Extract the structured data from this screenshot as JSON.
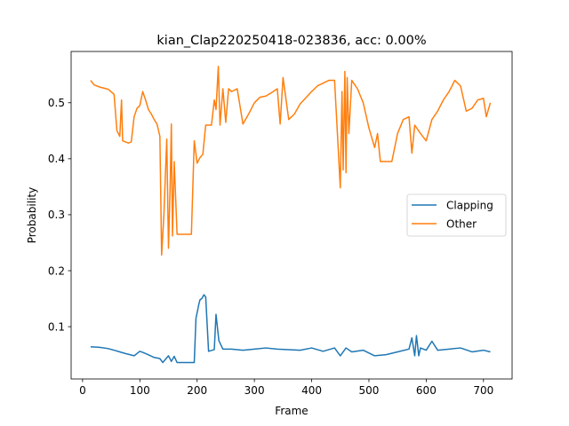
{
  "chart_data": {
    "type": "line",
    "title": "kian_Clap220250418-023836,  acc: 0.00%",
    "xlabel": "Frame",
    "ylabel": "Probability",
    "xlim": [
      -20,
      750
    ],
    "ylim": [
      0.0066,
      0.5916
    ],
    "xticks": [
      0,
      100,
      200,
      300,
      400,
      500,
      600,
      700
    ],
    "yticks": [
      0.1,
      0.2,
      0.3,
      0.4,
      0.5
    ],
    "ytick_labels": [
      "0.1",
      "0.2",
      "0.3",
      "0.4",
      "0.5"
    ],
    "legend_position": "center-right",
    "grid": false,
    "series": [
      {
        "name": "Clapping",
        "color": "#1f77b4",
        "x": [
          14,
          30,
          44,
          55,
          65,
          75,
          90,
          100,
          110,
          125,
          135,
          140,
          150,
          155,
          160,
          165,
          180,
          195,
          198,
          203,
          205,
          208,
          212,
          215,
          220,
          230,
          233,
          238,
          245,
          260,
          280,
          300,
          320,
          340,
          360,
          380,
          400,
          420,
          440,
          450,
          460,
          470,
          490,
          510,
          530,
          550,
          570,
          575,
          580,
          583,
          587,
          590,
          600,
          610,
          620,
          640,
          660,
          680,
          700,
          712
        ],
        "y": [
          0.064,
          0.063,
          0.061,
          0.058,
          0.055,
          0.052,
          0.048,
          0.056,
          0.052,
          0.045,
          0.043,
          0.036,
          0.048,
          0.038,
          0.047,
          0.036,
          0.036,
          0.036,
          0.115,
          0.14,
          0.148,
          0.15,
          0.157,
          0.153,
          0.056,
          0.059,
          0.122,
          0.075,
          0.06,
          0.06,
          0.058,
          0.06,
          0.062,
          0.06,
          0.059,
          0.058,
          0.062,
          0.056,
          0.062,
          0.048,
          0.062,
          0.055,
          0.058,
          0.048,
          0.05,
          0.055,
          0.06,
          0.08,
          0.048,
          0.084,
          0.048,
          0.062,
          0.058,
          0.074,
          0.058,
          0.06,
          0.062,
          0.055,
          0.058,
          0.055
        ]
      },
      {
        "name": "Other",
        "color": "#ff7f0e",
        "x": [
          14,
          20,
          30,
          45,
          55,
          60,
          65,
          68,
          70,
          75,
          80,
          85,
          90,
          95,
          100,
          105,
          110,
          115,
          120,
          125,
          130,
          135,
          138,
          142,
          147,
          150,
          153,
          155,
          157,
          160,
          165,
          170,
          180,
          190,
          195,
          200,
          205,
          210,
          215,
          225,
          230,
          233,
          237,
          240,
          245,
          250,
          255,
          260,
          270,
          280,
          290,
          300,
          310,
          320,
          330,
          340,
          345,
          350,
          360,
          370,
          380,
          400,
          410,
          420,
          430,
          440,
          445,
          450,
          453,
          455,
          458,
          460,
          462,
          465,
          470,
          480,
          490,
          500,
          510,
          515,
          520,
          525,
          530,
          540,
          550,
          560,
          570,
          575,
          580,
          590,
          600,
          610,
          620,
          630,
          640,
          650,
          660,
          670,
          680,
          690,
          700,
          705,
          712
        ],
        "y": [
          0.54,
          0.532,
          0.528,
          0.524,
          0.515,
          0.45,
          0.44,
          0.505,
          0.432,
          0.43,
          0.428,
          0.43,
          0.475,
          0.49,
          0.495,
          0.52,
          0.505,
          0.488,
          0.48,
          0.47,
          0.462,
          0.44,
          0.228,
          0.3,
          0.435,
          0.24,
          0.355,
          0.462,
          0.262,
          0.395,
          0.265,
          0.265,
          0.265,
          0.265,
          0.432,
          0.392,
          0.402,
          0.408,
          0.46,
          0.46,
          0.505,
          0.488,
          0.565,
          0.46,
          0.525,
          0.465,
          0.525,
          0.52,
          0.525,
          0.462,
          0.48,
          0.5,
          0.51,
          0.512,
          0.518,
          0.525,
          0.462,
          0.545,
          0.47,
          0.48,
          0.498,
          0.52,
          0.53,
          0.535,
          0.54,
          0.54,
          0.445,
          0.348,
          0.52,
          0.38,
          0.556,
          0.375,
          0.545,
          0.445,
          0.54,
          0.525,
          0.5,
          0.455,
          0.42,
          0.445,
          0.395,
          0.395,
          0.395,
          0.395,
          0.445,
          0.47,
          0.475,
          0.41,
          0.46,
          0.445,
          0.432,
          0.47,
          0.485,
          0.505,
          0.52,
          0.54,
          0.53,
          0.485,
          0.49,
          0.505,
          0.508,
          0.475,
          0.5
        ]
      }
    ]
  }
}
